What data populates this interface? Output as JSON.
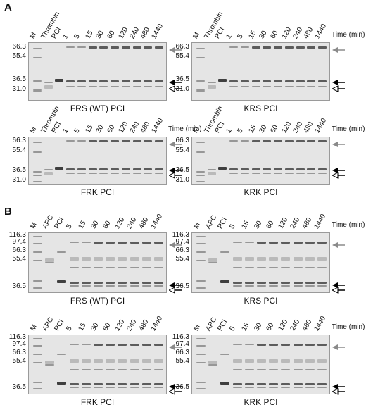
{
  "panels": [
    {
      "letter": "A",
      "gels": [
        {
          "title": "FRS (WT) PCI",
          "lanes": [
            "M",
            "Thrombin",
            "PCI",
            "1",
            "5",
            "15",
            "30",
            "60",
            "120",
            "240",
            "480",
            "1440"
          ],
          "mw": [
            "66.3",
            "55.4",
            "36.5",
            "31.0"
          ],
          "time_label": "",
          "arrows": [
            "gray",
            "black",
            "open"
          ]
        },
        {
          "title": "KRS PCI",
          "lanes": [
            "M",
            "Thrombin",
            "PCI",
            "1",
            "5",
            "15",
            "30",
            "60",
            "120",
            "240",
            "480",
            "1440"
          ],
          "mw": [
            "66.3",
            "55.4",
            "36.5",
            "31.0"
          ],
          "time_label": "Time (min)",
          "arrows": [
            "gray",
            "black",
            "open"
          ]
        },
        {
          "title": "FRK PCI",
          "lanes": [
            "M",
            "Thrombin",
            "PCI",
            "1",
            "5",
            "15",
            "30",
            "60",
            "120",
            "240",
            "480",
            "1440"
          ],
          "mw": [
            "66.3",
            "55.4",
            "36.5",
            "31.0"
          ],
          "time_label": "Time (min)",
          "arrows": [
            "gray",
            "black",
            "open"
          ]
        },
        {
          "title": "KRK PCI",
          "lanes": [
            "M",
            "Thrombin",
            "PCI",
            "1",
            "5",
            "15",
            "30",
            "60",
            "120",
            "240",
            "480",
            "1440"
          ],
          "mw": [
            "66.3",
            "55.4",
            "36.5",
            "31.0"
          ],
          "time_label": "Time (min)",
          "arrows": [
            "gray",
            "black",
            "open"
          ]
        }
      ]
    },
    {
      "letter": "B",
      "gels": [
        {
          "title": "FRS (WT) PCI",
          "lanes": [
            "M",
            "APC",
            "PCI",
            "5",
            "15",
            "30",
            "60",
            "120",
            "240",
            "480",
            "1440"
          ],
          "mw": [
            "116.3",
            "97.4",
            "66.3",
            "55.4",
            "36.5"
          ],
          "time_label": "",
          "arrows": [
            "gray",
            "black",
            "open"
          ]
        },
        {
          "title": "KRS PCI",
          "lanes": [
            "M",
            "APC",
            "PCI",
            "5",
            "15",
            "30",
            "60",
            "120",
            "240",
            "480",
            "1440"
          ],
          "mw": [
            "116.3",
            "97.4",
            "66.3",
            "55.4",
            "36.5"
          ],
          "time_label": "Time (min)",
          "arrows": [
            "gray",
            "black",
            "open"
          ]
        },
        {
          "title": "FRK PCI",
          "lanes": [
            "M",
            "APC",
            "PCI",
            "5",
            "15",
            "30",
            "60",
            "120",
            "240",
            "480",
            "1440"
          ],
          "mw": [
            "116.3",
            "97.4",
            "66.3",
            "55.4",
            "36.5"
          ],
          "time_label": "",
          "arrows": [
            "gray",
            "black",
            "open"
          ]
        },
        {
          "title": "KRK PCI",
          "lanes": [
            "M",
            "APC",
            "PCI",
            "5",
            "15",
            "30",
            "60",
            "120",
            "240",
            "480",
            "1440"
          ],
          "mw": [
            "116.3",
            "97.4",
            "66.3",
            "55.4",
            "36.5"
          ],
          "time_label": "Time (min)",
          "arrows": [
            "gray",
            "black",
            "open"
          ]
        }
      ]
    }
  ],
  "colors": {
    "gray_arrow": "#8a8a8a",
    "black_arrow": "#000000",
    "gel_bg": "#e5e5e5"
  }
}
